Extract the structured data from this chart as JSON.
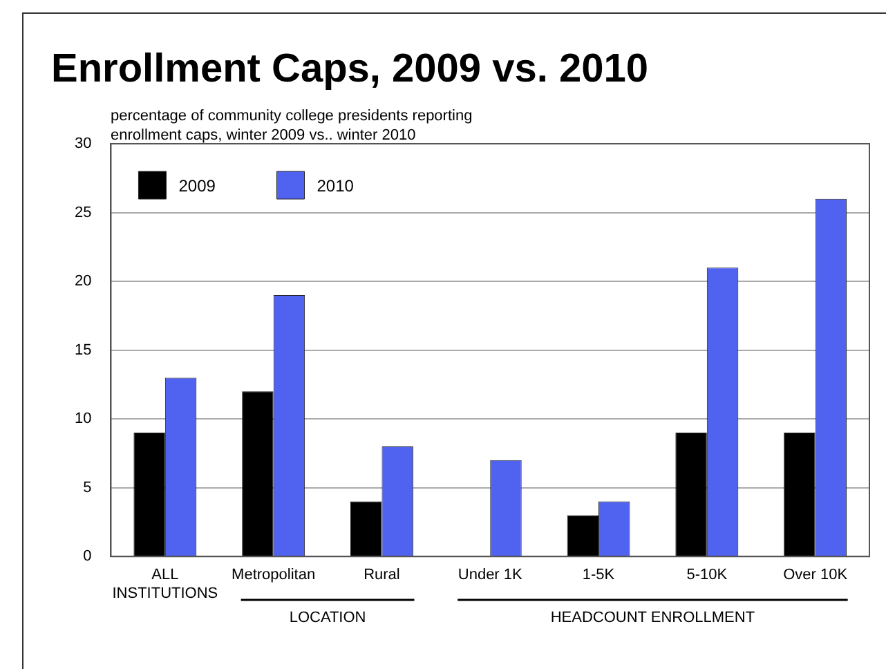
{
  "chart_data": {
    "type": "bar",
    "title": "Enrollment Caps, 2009 vs. 2010",
    "subtitle": "percentage of community college presidents reporting enrollment caps, winter 2009 vs.. winter 2010",
    "categories": [
      "ALL INSTITUTIONS",
      "Metropolitan",
      "Rural",
      "Under 1K",
      "1-5K",
      "5-10K",
      "Over 10K"
    ],
    "series": [
      {
        "name": "2009",
        "color": "#000000",
        "values": [
          9,
          12,
          4,
          0,
          3,
          9,
          9
        ]
      },
      {
        "name": "2010",
        "color": "#4f63f0",
        "values": [
          13,
          19,
          8,
          7,
          4,
          21,
          26
        ]
      }
    ],
    "annotations": [
      "LOCATION",
      "HEADCOUNT ENROLLMENT"
    ],
    "ylim": [
      0,
      30
    ],
    "yticks": [
      0,
      5,
      10,
      15,
      20,
      25,
      30
    ],
    "grid": "y",
    "legend": "top left"
  }
}
